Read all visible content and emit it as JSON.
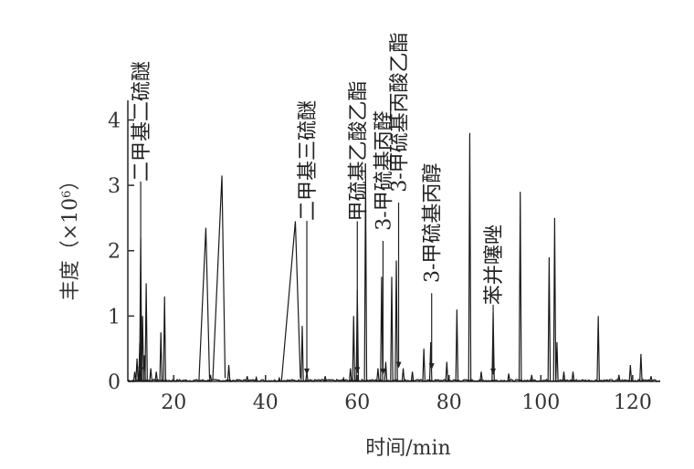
{
  "chart_data": {
    "type": "line",
    "xlabel": "时间/min",
    "ylabel_prefix": "丰度（×10",
    "ylabel_exp": "6",
    "ylabel_suffix": "）",
    "xlim": [
      10,
      126
    ],
    "ylim": [
      0,
      4.3
    ],
    "xticks": [
      20,
      40,
      60,
      80,
      100,
      120
    ],
    "yticks": [
      0,
      1,
      2,
      3,
      4
    ],
    "baseline_noise": 0.03,
    "peaks": [
      {
        "x": 11.5,
        "y": 0.15
      },
      {
        "x": 12.0,
        "y": 0.35
      },
      {
        "x": 12.6,
        "y": 0.6
      },
      {
        "x": 12.8,
        "y": 2.2
      },
      {
        "x": 13.2,
        "y": 1.0
      },
      {
        "x": 13.6,
        "y": 0.4
      },
      {
        "x": 14.0,
        "y": 1.5
      },
      {
        "x": 15.0,
        "y": 0.2
      },
      {
        "x": 16.2,
        "y": 0.15
      },
      {
        "x": 17.2,
        "y": 0.75
      },
      {
        "x": 18.0,
        "y": 1.3
      },
      {
        "x": 28.0,
        "y": 0.1
      },
      {
        "x": 32.0,
        "y": 0.25
      },
      {
        "x": 36.0,
        "y": 0.08
      },
      {
        "x": 38.0,
        "y": 0.06
      },
      {
        "x": 43.0,
        "y": 0.05
      },
      {
        "x": 48.0,
        "y": 0.85
      },
      {
        "x": 49.0,
        "y": 0.15
      },
      {
        "x": 53.0,
        "y": 0.08
      },
      {
        "x": 57.0,
        "y": 0.05
      },
      {
        "x": 58.5,
        "y": 0.2
      },
      {
        "x": 59.2,
        "y": 1.0
      },
      {
        "x": 60.0,
        "y": 1.4
      },
      {
        "x": 61.8,
        "y": 3.15
      },
      {
        "x": 64.5,
        "y": 0.2
      },
      {
        "x": 65.3,
        "y": 1.6
      },
      {
        "x": 66.2,
        "y": 0.3
      },
      {
        "x": 67.5,
        "y": 1.6
      },
      {
        "x": 68.5,
        "y": 1.85
      },
      {
        "x": 70.0,
        "y": 0.2
      },
      {
        "x": 72.0,
        "y": 0.15
      },
      {
        "x": 74.5,
        "y": 0.5
      },
      {
        "x": 76.0,
        "y": 0.6
      },
      {
        "x": 79.5,
        "y": 0.3
      },
      {
        "x": 81.7,
        "y": 1.1
      },
      {
        "x": 84.5,
        "y": 3.8
      },
      {
        "x": 87.0,
        "y": 0.15
      },
      {
        "x": 89.6,
        "y": 1.05
      },
      {
        "x": 93.0,
        "y": 0.12
      },
      {
        "x": 95.5,
        "y": 2.9
      },
      {
        "x": 98.0,
        "y": 0.1
      },
      {
        "x": 101.8,
        "y": 1.9
      },
      {
        "x": 103.0,
        "y": 2.5
      },
      {
        "x": 103.5,
        "y": 0.6
      },
      {
        "x": 105.0,
        "y": 0.15
      },
      {
        "x": 107.0,
        "y": 0.15
      },
      {
        "x": 112.5,
        "y": 1.0
      },
      {
        "x": 117.0,
        "y": 0.1
      },
      {
        "x": 119.5,
        "y": 0.25
      },
      {
        "x": 121.8,
        "y": 0.42
      },
      {
        "x": 124.0,
        "y": 0.08
      }
    ],
    "broad_peaks": [
      {
        "x_start": 25.5,
        "x_top": 27.0,
        "x_end": 27.8,
        "y": 2.35
      },
      {
        "x_start": 28.5,
        "x_top": 30.5,
        "x_end": 31.2,
        "y": 3.15
      },
      {
        "x_start": 43.5,
        "x_top": 46.5,
        "x_end": 47.6,
        "y": 2.45
      }
    ],
    "annotations": [
      {
        "label": "二甲基二硫醚",
        "x": 12.8,
        "y_tip": 0.12,
        "text_top_y": 4.9
      },
      {
        "label": "二甲基三硫醚",
        "x": 49.0,
        "y_tip": 0.1,
        "text_top_y": 4.3
      },
      {
        "label": "甲硫基乙酸乙酯",
        "x": 60.0,
        "y_tip": 0.12,
        "text_top_y": 4.6
      },
      {
        "label": "3-甲硫基丙醛",
        "x": 65.6,
        "y_tip": 0.1,
        "text_top_y": 4.3
      },
      {
        "label": "3-甲硫基丙酸乙酯",
        "x": 69.0,
        "y_tip": 0.2,
        "text_top_y": 5.5
      },
      {
        "label": "3-甲硫基丙醇",
        "x": 76.2,
        "y_tip": 0.18,
        "text_top_y": 3.5
      },
      {
        "label": "苯并噻唑",
        "x": 89.6,
        "y_tip": 0.1,
        "text_top_y": 2.4
      }
    ]
  }
}
